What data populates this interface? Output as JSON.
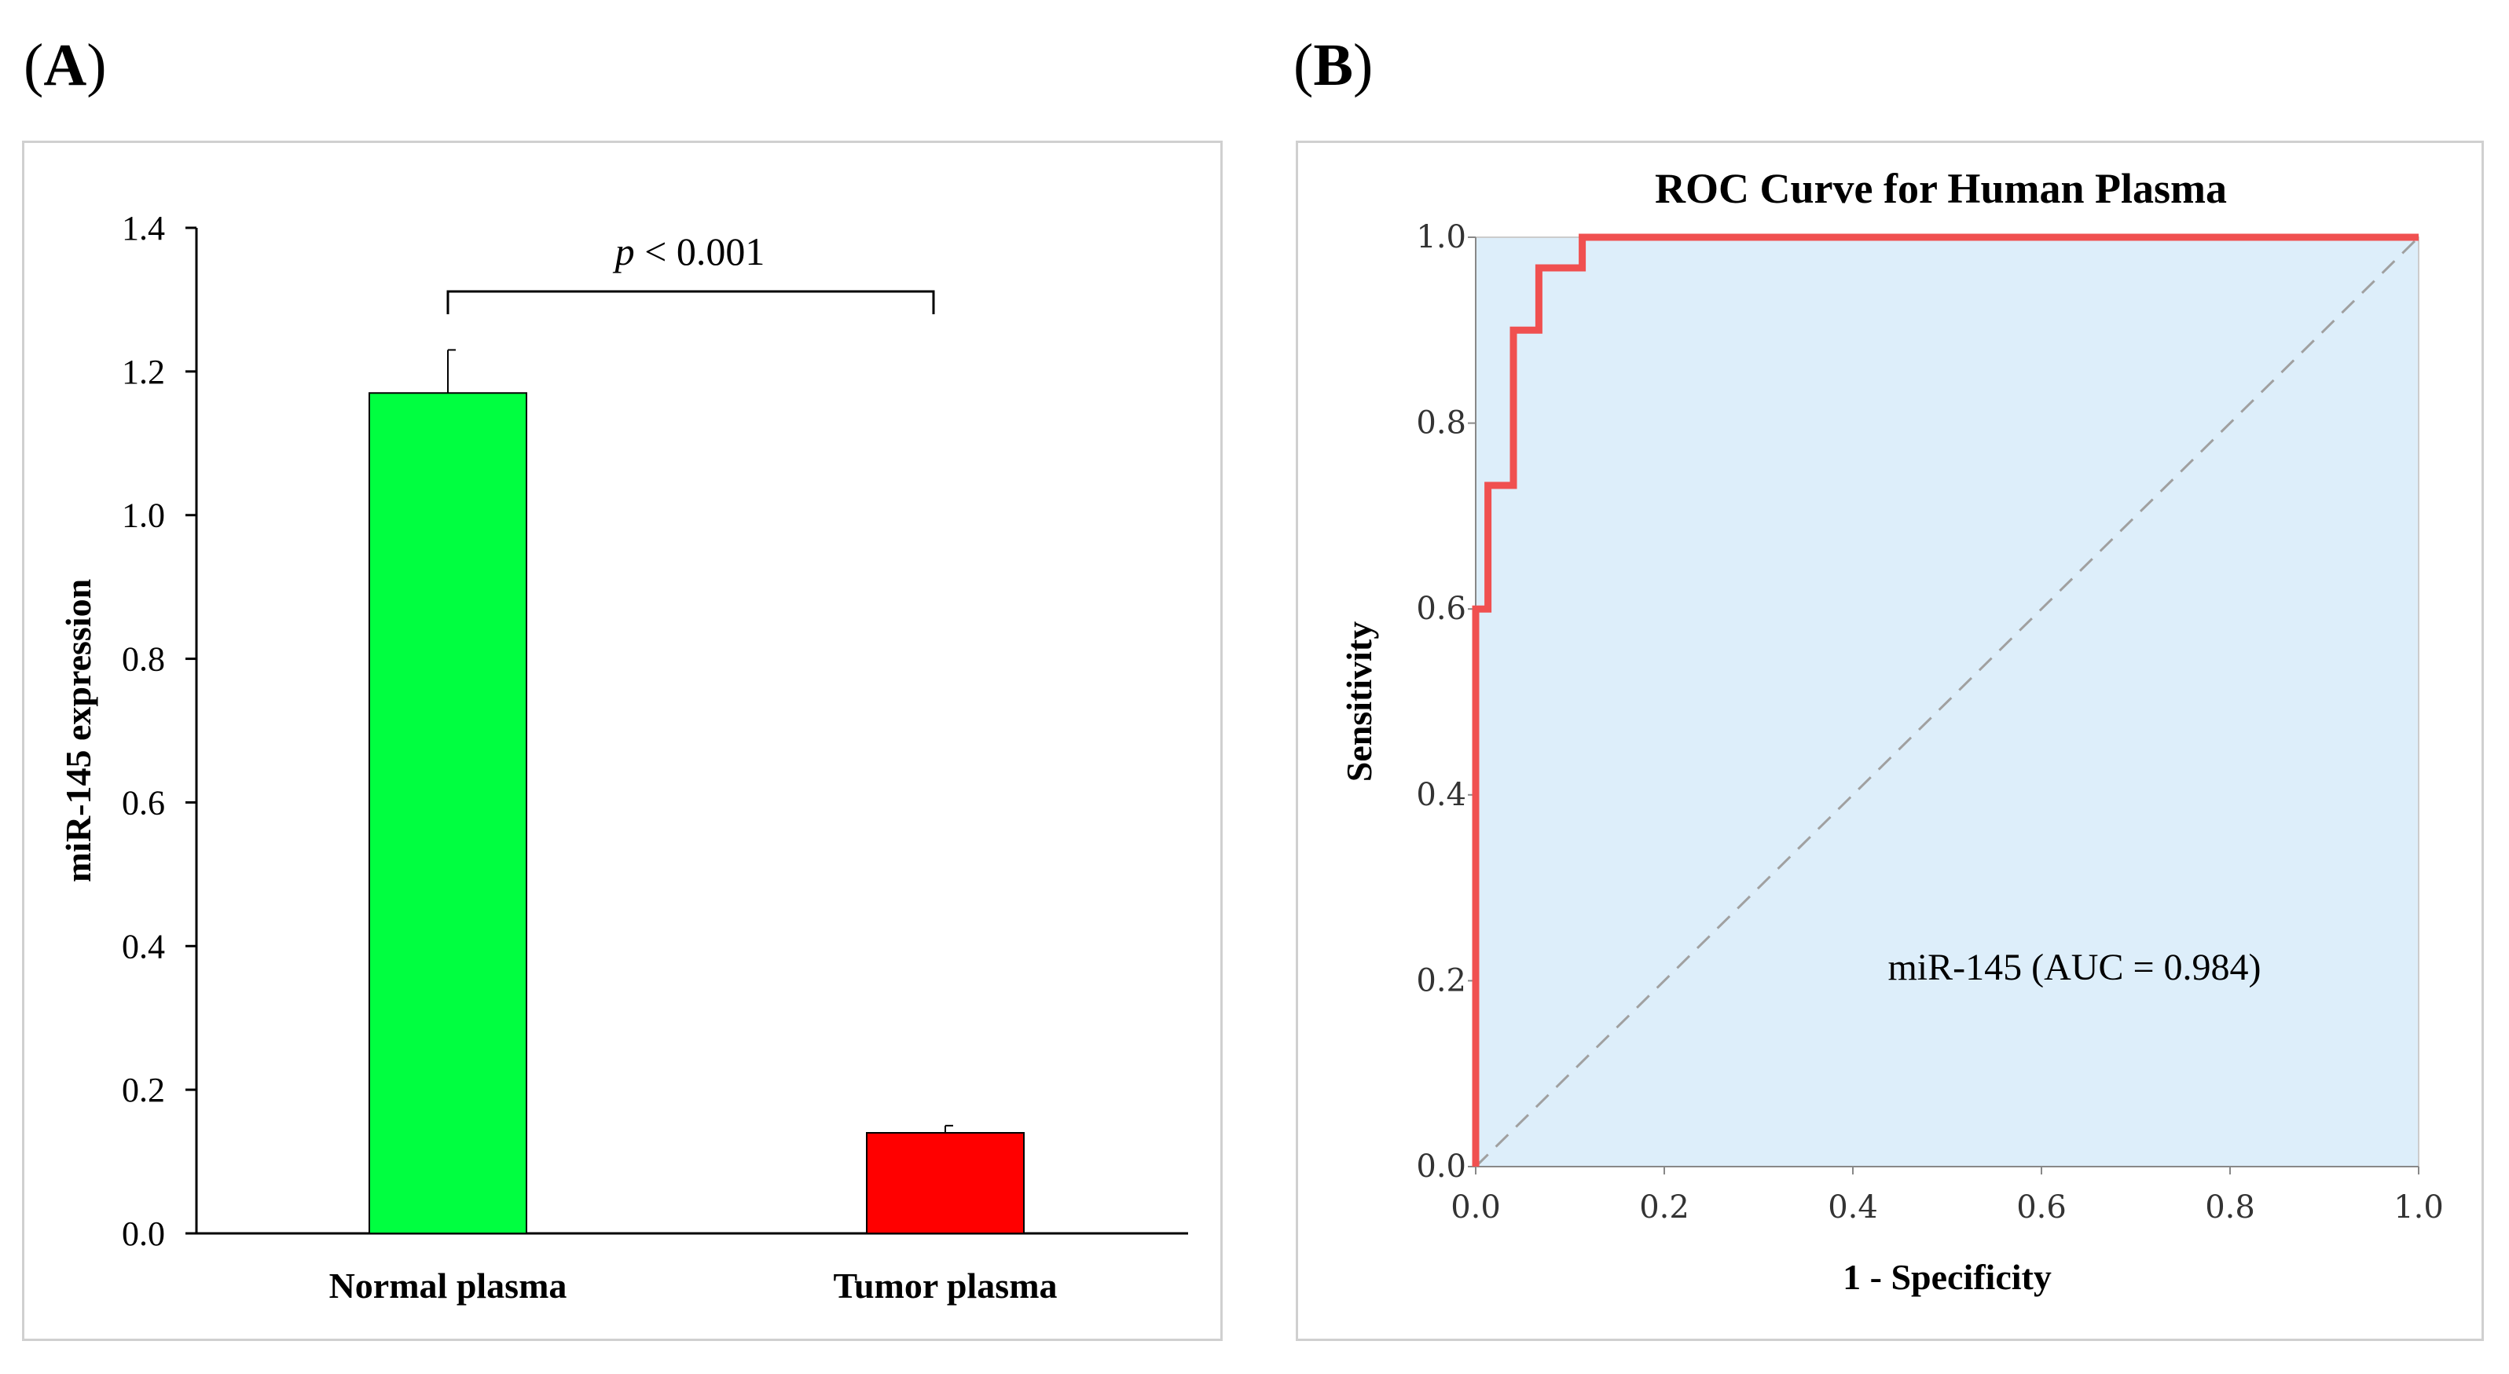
{
  "panels": {
    "a_label_open": "(",
    "a_label_letter": "A",
    "a_label_close": ")",
    "b_label_open": "(",
    "b_label_letter": "B",
    "b_label_close": ")"
  },
  "chart_data": [
    {
      "type": "bar",
      "panel": "A",
      "title": "",
      "categories": [
        "Normal plasma",
        "Tumor plasma"
      ],
      "values": [
        1.17,
        0.14
      ],
      "errors": [
        0.06,
        0.01
      ],
      "colors": [
        "#00ff40",
        "#ff0000"
      ],
      "ylabel": "miR-145 expression",
      "xlabel": "",
      "ylim": [
        0,
        1.4
      ],
      "yticks": [
        "0.0",
        "0.2",
        "0.4",
        "0.6",
        "0.8",
        "1.0",
        "1.2",
        "1.4"
      ],
      "annotation_italic": "p",
      "annotation_rest": " < 0.001"
    },
    {
      "type": "line",
      "panel": "B",
      "title": "ROC Curve for Human Plasma",
      "xlabel": "1 - Specificity",
      "ylabel": "Sensitivity",
      "xlim": [
        0,
        1
      ],
      "ylim": [
        0,
        1
      ],
      "xticks": [
        "0.0",
        "0.2",
        "0.4",
        "0.6",
        "0.8",
        "1.0"
      ],
      "yticks": [
        "0.0",
        "0.2",
        "0.4",
        "0.6",
        "0.8",
        "1.0"
      ],
      "series": [
        {
          "name": "miR-145",
          "color": "#f05050",
          "x": [
            0,
            0,
            0.013,
            0.013,
            0.04,
            0.04,
            0.067,
            0.067,
            0.113,
            0.113,
            1.0
          ],
          "y": [
            0,
            0.6,
            0.6,
            0.733,
            0.733,
            0.9,
            0.9,
            0.967,
            0.967,
            1.0,
            1.0
          ]
        },
        {
          "name": "reference",
          "color": "#a0a0a0",
          "x": [
            0,
            1
          ],
          "y": [
            0,
            1
          ]
        }
      ],
      "fill_color": "#ddeefa",
      "annotation": "miR-145 (AUC = 0.984)"
    }
  ]
}
